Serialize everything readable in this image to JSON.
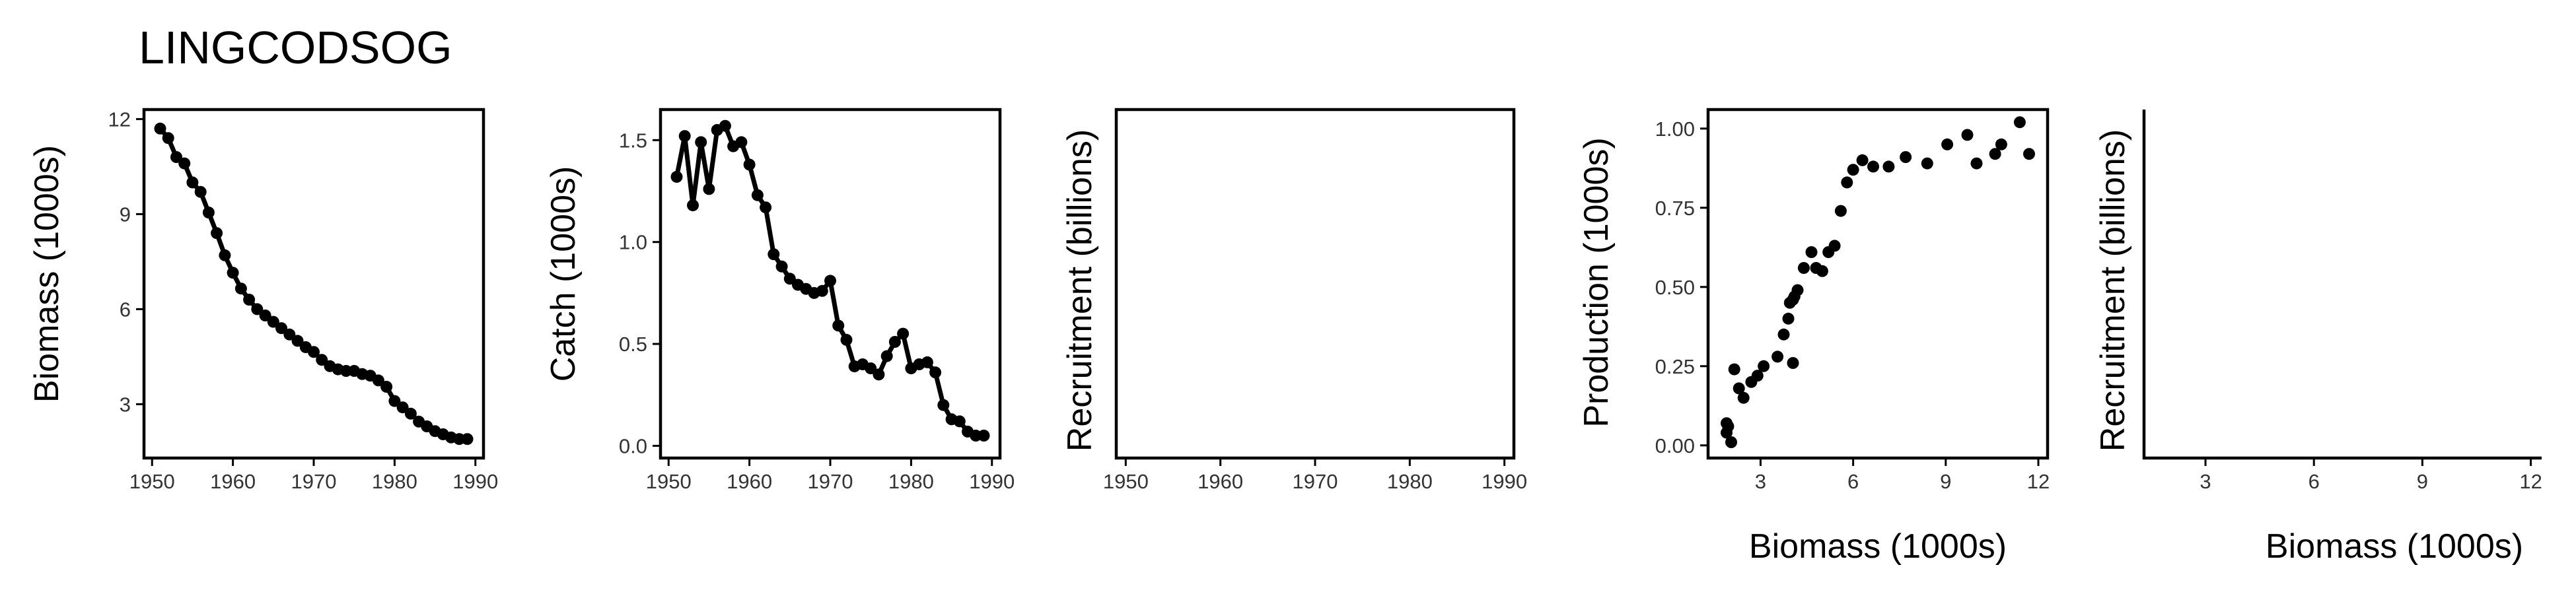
{
  "title": "LINGCODSOG",
  "chart_data": [
    {
      "id": "biomass",
      "type": "line",
      "xlabel": "",
      "ylabel": "Biomass (1000s)",
      "xlim": [
        1949,
        1991
      ],
      "ylim": [
        1.3,
        12.3
      ],
      "xticks": [
        1950,
        1960,
        1970,
        1980,
        1990
      ],
      "yticks": [
        3,
        6,
        9,
        12
      ],
      "ytick_labels": [
        "3",
        "6",
        "9",
        "12"
      ],
      "frame": "box",
      "points": true,
      "x": [
        1951,
        1952,
        1953,
        1954,
        1955,
        1956,
        1957,
        1958,
        1959,
        1960,
        1961,
        1962,
        1963,
        1964,
        1965,
        1966,
        1967,
        1968,
        1969,
        1970,
        1971,
        1972,
        1973,
        1974,
        1975,
        1976,
        1977,
        1978,
        1979,
        1980,
        1981,
        1982,
        1983,
        1984,
        1985,
        1986,
        1987,
        1988,
        1989
      ],
      "y": [
        11.7,
        11.4,
        10.8,
        10.6,
        10.0,
        9.7,
        9.05,
        8.4,
        7.7,
        7.15,
        6.65,
        6.3,
        6.0,
        5.8,
        5.6,
        5.4,
        5.2,
        5.0,
        4.8,
        4.65,
        4.4,
        4.2,
        4.1,
        4.05,
        4.05,
        3.95,
        3.9,
        3.75,
        3.55,
        3.1,
        2.9,
        2.7,
        2.45,
        2.3,
        2.15,
        2.05,
        1.95,
        1.9,
        1.9
      ]
    },
    {
      "id": "catch",
      "type": "line",
      "xlabel": "",
      "ylabel": "Catch (1000s)",
      "xlim": [
        1949,
        1991
      ],
      "ylim": [
        -0.06,
        1.65
      ],
      "xticks": [
        1950,
        1960,
        1970,
        1980,
        1990
      ],
      "yticks": [
        0,
        0.5,
        1,
        1.5
      ],
      "ytick_labels": [
        "0.0",
        "0.5",
        "1.0",
        "1.5"
      ],
      "frame": "box",
      "points": true,
      "x": [
        1951,
        1952,
        1953,
        1954,
        1955,
        1956,
        1957,
        1958,
        1959,
        1960,
        1961,
        1962,
        1963,
        1964,
        1965,
        1966,
        1967,
        1968,
        1969,
        1970,
        1971,
        1972,
        1973,
        1974,
        1975,
        1976,
        1977,
        1978,
        1979,
        1980,
        1981,
        1982,
        1983,
        1984,
        1985,
        1986,
        1987,
        1988,
        1989
      ],
      "y": [
        1.32,
        1.52,
        1.18,
        1.49,
        1.26,
        1.55,
        1.57,
        1.47,
        1.49,
        1.38,
        1.23,
        1.17,
        0.94,
        0.88,
        0.82,
        0.79,
        0.77,
        0.75,
        0.76,
        0.81,
        0.59,
        0.52,
        0.39,
        0.4,
        0.38,
        0.35,
        0.44,
        0.51,
        0.55,
        0.38,
        0.4,
        0.41,
        0.36,
        0.2,
        0.13,
        0.12,
        0.07,
        0.05,
        0.05
      ]
    },
    {
      "id": "recruitment-year",
      "type": "line",
      "xlabel": "",
      "ylabel": "Recruitment (billions)",
      "xlim": [
        1949,
        1991
      ],
      "xticks": [
        1950,
        1960,
        1970,
        1980,
        1990
      ],
      "yticks": [],
      "frame": "box",
      "x": [],
      "y": []
    },
    {
      "id": "production",
      "type": "scatter",
      "xlabel": "Biomass (1000s)",
      "ylabel": "Production (1000s)",
      "xlim": [
        1.3,
        12.3
      ],
      "ylim": [
        -0.04,
        1.06
      ],
      "xticks": [
        3,
        6,
        9,
        12
      ],
      "yticks": [
        0,
        0.25,
        0.5,
        0.75,
        1
      ],
      "ytick_labels": [
        "0.00",
        "0.25",
        "0.50",
        "0.75",
        "1.00"
      ],
      "frame": "box",
      "x": [
        1.9,
        1.9,
        1.95,
        2.05,
        2.15,
        2.3,
        2.45,
        2.7,
        2.9,
        3.1,
        3.55,
        3.75,
        3.9,
        3.95,
        4.05,
        4.05,
        4.1,
        4.2,
        4.4,
        4.65,
        4.8,
        5.0,
        5.2,
        5.4,
        5.6,
        5.8,
        6.0,
        6.3,
        6.65,
        7.15,
        7.7,
        8.4,
        9.05,
        9.7,
        10.0,
        10.6,
        10.8,
        11.4,
        11.7
      ],
      "y": [
        0.04,
        0.07,
        0.06,
        0.01,
        0.24,
        0.18,
        0.15,
        0.2,
        0.22,
        0.25,
        0.28,
        0.35,
        0.4,
        0.45,
        0.46,
        0.26,
        0.47,
        0.49,
        0.56,
        0.61,
        0.56,
        0.55,
        0.61,
        0.63,
        0.74,
        0.83,
        0.87,
        0.9,
        0.88,
        0.88,
        0.91,
        0.89,
        0.95,
        0.98,
        0.89,
        0.92,
        0.95,
        1.02,
        0.92
      ]
    },
    {
      "id": "recruitment-biomass",
      "type": "scatter",
      "xlabel": "Biomass (1000s)",
      "ylabel": "Recruitment (billions)",
      "xlim": [
        1.3,
        12.3
      ],
      "xticks": [
        3,
        6,
        9,
        12
      ],
      "yticks": [],
      "frame": "axes",
      "x": [],
      "y": []
    }
  ]
}
